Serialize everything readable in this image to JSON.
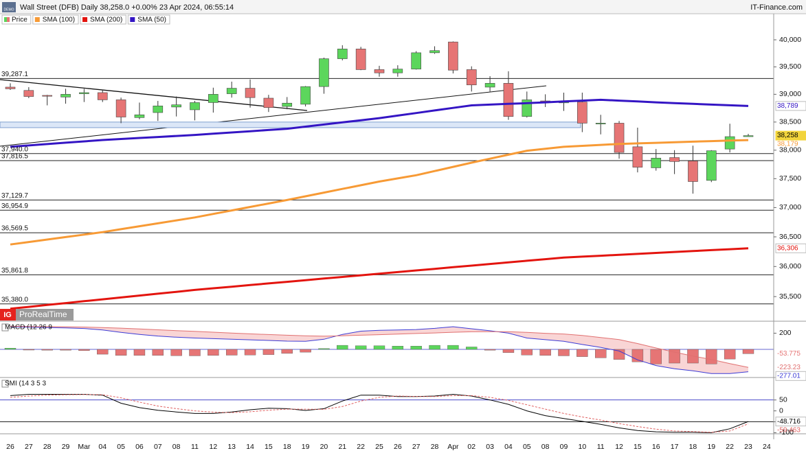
{
  "chart_data": [
    {
      "type": "candlestick",
      "badge": "DEMO",
      "title": "Wall Street (DFB) Daily 38,258.0 +0.00% 23 Apr 2024, 06:55:14",
      "source": "IT-Finance.com",
      "logo": {
        "mark": "IG",
        "text": "ProRealTime"
      },
      "categories": [
        "26",
        "27",
        "28",
        "29",
        "Mar",
        "04",
        "05",
        "06",
        "07",
        "08",
        "11",
        "12",
        "13",
        "14",
        "15",
        "18",
        "19",
        "20",
        "21",
        "22",
        "25",
        "26",
        "27",
        "28",
        "Apr",
        "02",
        "03",
        "04",
        "05",
        "08",
        "09",
        "10",
        "11",
        "12",
        "15",
        "16",
        "17",
        "18",
        "19",
        "22",
        "23",
        "24"
      ],
      "log_scale": true,
      "ylim": [
        35096,
        40488
      ],
      "yticks": [
        {
          "value": 35500,
          "label": "35,500"
        },
        {
          "value": 36000,
          "label": "36,000"
        },
        {
          "value": 36500,
          "label": "36,500"
        },
        {
          "value": 37000,
          "label": "37,000"
        },
        {
          "value": 37500,
          "label": "37,500"
        },
        {
          "value": 38000,
          "label": "38,000"
        },
        {
          "value": 38500,
          "label": "38,500"
        },
        {
          "value": 39000,
          "label": "39,000"
        },
        {
          "value": 39500,
          "label": "39,500"
        },
        {
          "value": 40000,
          "label": "40,000"
        }
      ],
      "levels": [
        {
          "value": 39287.1,
          "label": "39,287.1"
        },
        {
          "value": 37940.0,
          "label": "37,940.0"
        },
        {
          "value": 37816.5,
          "label": "37,816.5"
        },
        {
          "value": 37129.7,
          "label": "37,129.7"
        },
        {
          "value": 36954.9,
          "label": "36,954.9"
        },
        {
          "value": 36569.5,
          "label": "36,569.5"
        },
        {
          "value": 35861.8,
          "label": "35,861.8"
        },
        {
          "value": 35380.0,
          "label": "35,380.0"
        }
      ],
      "zone": {
        "range": [
          38400,
          38500
        ],
        "color": "#dce7f7",
        "edge": "#7f9fcf"
      },
      "series": [
        {
          "name": "Price",
          "type": "candlestick",
          "up_color": "#5cd65c",
          "down_color": "#e67575",
          "open": [
            39130,
            39070,
            38980,
            38950,
            39010,
            39030,
            38900,
            38580,
            38670,
            38770,
            38720,
            38850,
            39010,
            39110,
            38930,
            38780,
            38820,
            39140,
            39650,
            39830,
            39450,
            39390,
            39460,
            39760,
            39960,
            39450,
            39130,
            39200,
            38600,
            38880,
            38860,
            38860,
            38470,
            38480,
            38060,
            37690,
            37870,
            37810,
            37470,
            38020,
            38240,
            null
          ],
          "high": [
            39200,
            39130,
            38990,
            39100,
            39100,
            39080,
            38940,
            38850,
            38880,
            38960,
            38880,
            39120,
            39230,
            39270,
            38990,
            38950,
            39150,
            39670,
            39900,
            39870,
            39520,
            39530,
            39790,
            39880,
            39970,
            39510,
            39330,
            39420,
            39050,
            39000,
            39030,
            39030,
            38630,
            38520,
            38400,
            38020,
            38000,
            38080,
            38000,
            38470,
            38290,
            null
          ],
          "low": [
            39080,
            38930,
            38800,
            38830,
            38860,
            38860,
            38480,
            38550,
            38520,
            38600,
            38530,
            38670,
            38940,
            38760,
            38680,
            38730,
            38780,
            39010,
            39620,
            39440,
            39320,
            39320,
            39450,
            39740,
            39380,
            39050,
            39050,
            38540,
            38580,
            38770,
            38700,
            38320,
            38280,
            37850,
            37610,
            37640,
            37580,
            37240,
            37440,
            37960,
            38240,
            null
          ],
          "close": [
            39100,
            38960,
            38970,
            39000,
            39030,
            38900,
            38590,
            38630,
            38790,
            38810,
            38850,
            39000,
            39110,
            38940,
            38760,
            38840,
            39140,
            39650,
            39830,
            39450,
            39390,
            39460,
            39760,
            39800,
            39440,
            39170,
            39200,
            38600,
            38900,
            38870,
            38860,
            38480,
            38480,
            37960,
            37700,
            37860,
            37800,
            37450,
            37990,
            38240,
            38258,
            null
          ],
          "last_value_label": "38,258",
          "label_color": "#f2d43c",
          "label_box": true
        },
        {
          "name": "SMA (100)",
          "color": "#f79a35",
          "values": [
            36370,
            36412,
            36454,
            36496,
            36538,
            36580,
            36630,
            36680,
            36730,
            36780,
            36830,
            36890,
            36950,
            37010,
            37070,
            37130,
            37194,
            37258,
            37322,
            37386,
            37450,
            37505,
            37560,
            37633,
            37707,
            37780,
            37850,
            37920,
            37990,
            38025,
            38060,
            38077,
            38093,
            38110,
            38120,
            38130,
            38140,
            38150,
            38160,
            38170,
            38179,
            null
          ],
          "last_value_label": "38,179",
          "label_box": false
        },
        {
          "name": "SMA (200)",
          "color": "#e3140e",
          "values": [
            35300,
            35331,
            35362,
            35393,
            35424,
            35455,
            35486,
            35517,
            35548,
            35579,
            35610,
            35637,
            35664,
            35691,
            35718,
            35745,
            35772,
            35799,
            35826,
            35853,
            35880,
            35907,
            35934,
            35961,
            35988,
            36015,
            36042,
            36069,
            36096,
            36123,
            36150,
            36166,
            36181,
            36197,
            36212,
            36228,
            36244,
            36259,
            36275,
            36290,
            36306,
            null
          ],
          "last_value_label": "36,306",
          "label_box": true
        },
        {
          "name": "SMA (50)",
          "color": "#3415c4",
          "values": [
            38060,
            38084,
            38108,
            38132,
            38156,
            38180,
            38198,
            38216,
            38234,
            38252,
            38270,
            38292,
            38314,
            38336,
            38358,
            38380,
            38418,
            38456,
            38494,
            38532,
            38570,
            38616,
            38662,
            38708,
            38754,
            38800,
            38813,
            38827,
            38840,
            38855,
            38870,
            38885,
            38900,
            38885,
            38870,
            38855,
            38840,
            38827,
            38814,
            38801,
            38789,
            null
          ],
          "last_value_label": "38,789",
          "label_box": true
        }
      ]
    },
    {
      "type": "macd",
      "title": "MACD (12 26 9",
      "ylim": [
        -348,
        348
      ],
      "yticks": [
        200
      ],
      "fill_color": "#f7caca",
      "histogram": {
        "up_color": "#5cd65c",
        "down_color": "#e67575",
        "values": [
          15,
          -8,
          -10,
          -10,
          -15,
          -60,
          -75,
          -75,
          -75,
          -78,
          -80,
          -75,
          -72,
          -70,
          -65,
          -50,
          -35,
          10,
          50,
          45,
          45,
          40,
          40,
          50,
          50,
          30,
          -10,
          -40,
          -70,
          -75,
          -80,
          -90,
          -105,
          -125,
          -155,
          -180,
          -170,
          -170,
          -180,
          -120,
          -53.775,
          null
        ],
        "last_value_label": "-53.775"
      },
      "series": [
        {
          "color": "#3b3bd6",
          "values": [
            280,
            275,
            270,
            265,
            258,
            240,
            210,
            185,
            165,
            150,
            140,
            132,
            125,
            118,
            110,
            102,
            100,
            125,
            185,
            225,
            235,
            240,
            245,
            260,
            280,
            255,
            230,
            200,
            140,
            120,
            100,
            60,
            25,
            -20,
            -130,
            -200,
            -240,
            -265,
            -300,
            -300,
            -277.01,
            null
          ],
          "last_value_label": "-277.01",
          "label_box": true
        },
        {
          "color": "#e07070",
          "values": [
            285,
            283,
            281,
            279,
            276,
            270,
            262,
            252,
            242,
            232,
            222,
            212,
            202,
            192,
            183,
            175,
            168,
            164,
            168,
            175,
            182,
            189,
            196,
            203,
            211,
            217,
            219,
            219,
            210,
            199,
            190,
            172,
            147,
            121,
            72,
            17,
            -34,
            -82,
            -126,
            -176,
            -223.23,
            null
          ],
          "last_value_label": "-223.23",
          "label_box": false
        }
      ]
    },
    {
      "type": "line",
      "title": "SMI (14 3 5 3",
      "ylim": [
        -105,
        153
      ],
      "yticks": [
        50,
        0,
        -50,
        -100
      ],
      "levels": [
        50,
        -50
      ],
      "level_colors": [
        "#2f2fc0",
        "#000000"
      ],
      "series": [
        {
          "color": "#000000",
          "values": [
            70,
            76,
            76,
            76,
            76,
            72,
            35,
            15,
            3,
            -5,
            -12,
            -12,
            -5,
            5,
            12,
            10,
            2,
            10,
            45,
            72,
            72,
            66,
            66,
            68,
            76,
            68,
            50,
            30,
            0,
            -22,
            -35,
            -48,
            -62,
            -78,
            -90,
            -96,
            -98,
            -98,
            -100,
            -82,
            -48.716,
            null
          ],
          "last_value_label": "-48.716",
          "label_box": true
        },
        {
          "color": "#e06060",
          "dash": true,
          "values": [
            62,
            68,
            72,
            74,
            75,
            74,
            60,
            40,
            22,
            10,
            0,
            -6,
            -8,
            -4,
            3,
            8,
            8,
            7,
            20,
            45,
            62,
            68,
            66,
            66,
            70,
            70,
            62,
            48,
            28,
            8,
            -12,
            -28,
            -42,
            -58,
            -72,
            -84,
            -92,
            -95,
            -98,
            -92,
            -59.463,
            null
          ],
          "last_value_label": "-59.463",
          "label_box": false
        }
      ]
    }
  ]
}
